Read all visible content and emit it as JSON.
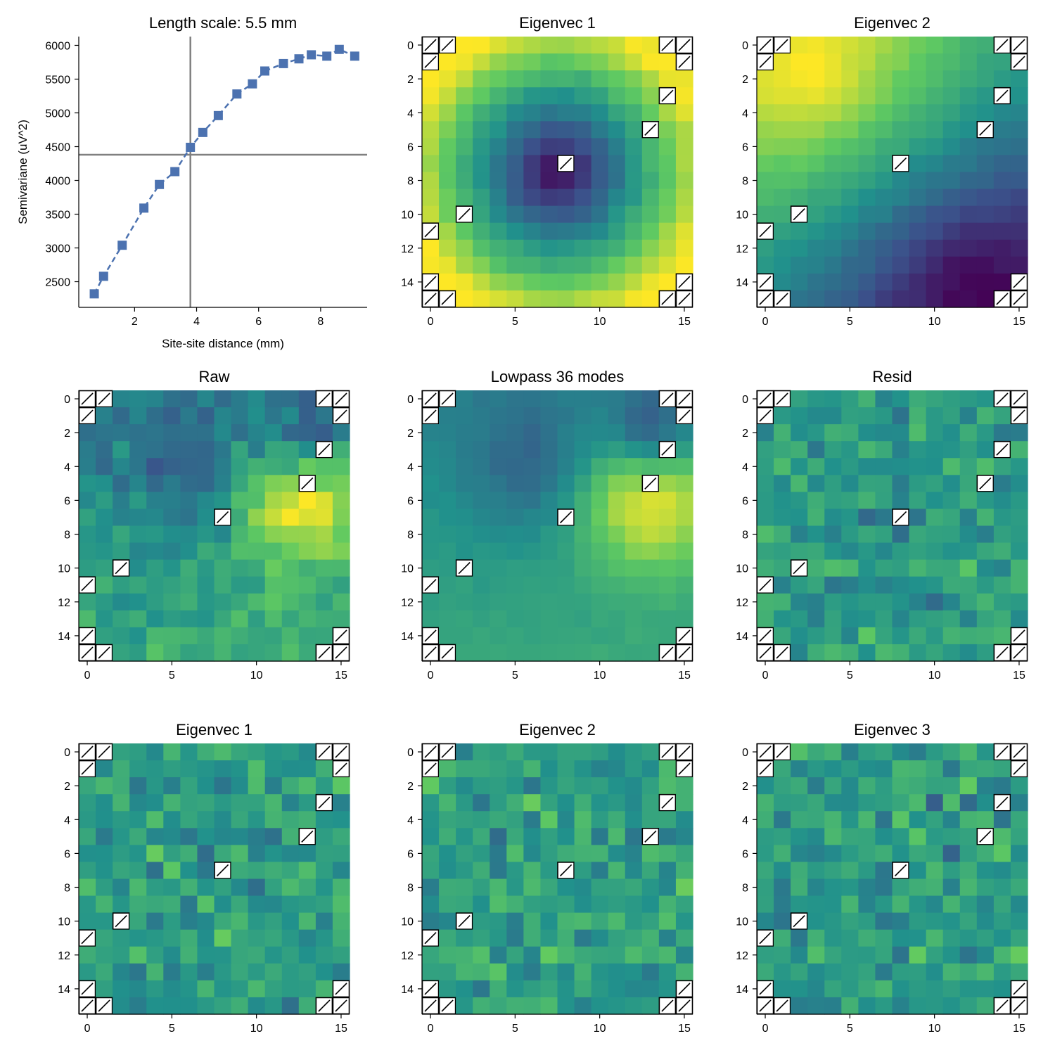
{
  "chart_data": [
    {
      "type": "line",
      "title": "Length scale: 5.5 mm",
      "xlabel": "Site-site distance (mm)",
      "ylabel": "Semivariane (uV^2)",
      "series_color": "#4c72b0",
      "x": [
        0.7,
        1.0,
        1.6,
        2.3,
        2.8,
        3.3,
        3.8,
        4.2,
        4.7,
        5.3,
        5.8,
        6.2,
        6.8,
        7.3,
        7.7,
        8.2,
        8.6,
        9.1
      ],
      "y": [
        2320,
        2580,
        3040,
        3590,
        3940,
        4130,
        4490,
        4710,
        4960,
        5280,
        5430,
        5620,
        5730,
        5800,
        5860,
        5840,
        5940,
        5840
      ],
      "xlim": [
        0.2,
        9.5
      ],
      "ylim": [
        2120,
        6130
      ],
      "xticks": [
        2,
        4,
        6,
        8
      ],
      "yticks": [
        2500,
        3000,
        3500,
        4000,
        4500,
        5000,
        5500,
        6000
      ],
      "crosshair": {
        "x": 3.8,
        "y": 4380,
        "color": "#808080"
      }
    },
    {
      "type": "heatmap",
      "title": "Eigenvec 1",
      "pattern": "radial_center",
      "size": 16,
      "xticks": [
        0,
        5,
        10,
        15
      ],
      "yticks": [
        0,
        2,
        4,
        6,
        8,
        10,
        12,
        14
      ]
    },
    {
      "type": "heatmap",
      "title": "Eigenvec 2",
      "pattern": "diagonal_gradient",
      "size": 16,
      "xticks": [
        0,
        5,
        10,
        15
      ],
      "yticks": [
        0,
        2,
        4,
        6,
        8,
        10,
        12,
        14
      ]
    },
    {
      "type": "heatmap",
      "title": "Raw",
      "pattern": "noisy_field",
      "size": 16,
      "xticks": [
        0,
        5,
        10,
        15
      ],
      "yticks": [
        0,
        2,
        4,
        6,
        8,
        10,
        12,
        14
      ]
    },
    {
      "type": "heatmap",
      "title": "Lowpass 36 modes",
      "pattern": "smooth_field",
      "size": 16,
      "xticks": [
        0,
        5,
        10,
        15
      ],
      "yticks": [
        0,
        2,
        4,
        6,
        8,
        10,
        12,
        14
      ]
    },
    {
      "type": "heatmap",
      "title": "Resid",
      "pattern": "noise",
      "size": 16,
      "xticks": [
        0,
        5,
        10,
        15
      ],
      "yticks": [
        0,
        2,
        4,
        6,
        8,
        10,
        12,
        14
      ]
    },
    {
      "type": "heatmap",
      "title": "Eigenvec 1",
      "pattern": "noise",
      "size": 16,
      "xticks": [
        0,
        5,
        10,
        15
      ],
      "yticks": [
        0,
        2,
        4,
        6,
        8,
        10,
        12,
        14
      ]
    },
    {
      "type": "heatmap",
      "title": "Eigenvec 2",
      "pattern": "noise",
      "size": 16,
      "xticks": [
        0,
        5,
        10,
        15
      ],
      "yticks": [
        0,
        2,
        4,
        6,
        8,
        10,
        12,
        14
      ]
    },
    {
      "type": "heatmap",
      "title": "Eigenvec 3",
      "pattern": "noise",
      "size": 16,
      "xticks": [
        0,
        5,
        10,
        15
      ],
      "yticks": [
        0,
        2,
        4,
        6,
        8,
        10,
        12,
        14
      ]
    }
  ],
  "masked_cells": [
    [
      0,
      0
    ],
    [
      0,
      1
    ],
    [
      1,
      0
    ],
    [
      0,
      14
    ],
    [
      0,
      15
    ],
    [
      1,
      15
    ],
    [
      3,
      14
    ],
    [
      5,
      13
    ],
    [
      7,
      8
    ],
    [
      10,
      2
    ],
    [
      11,
      0
    ],
    [
      14,
      0
    ],
    [
      15,
      0
    ],
    [
      15,
      1
    ],
    [
      14,
      15
    ],
    [
      15,
      14
    ],
    [
      15,
      15
    ]
  ],
  "colormap": [
    "#440154",
    "#3b528b",
    "#21918c",
    "#5ec962",
    "#fde725"
  ]
}
